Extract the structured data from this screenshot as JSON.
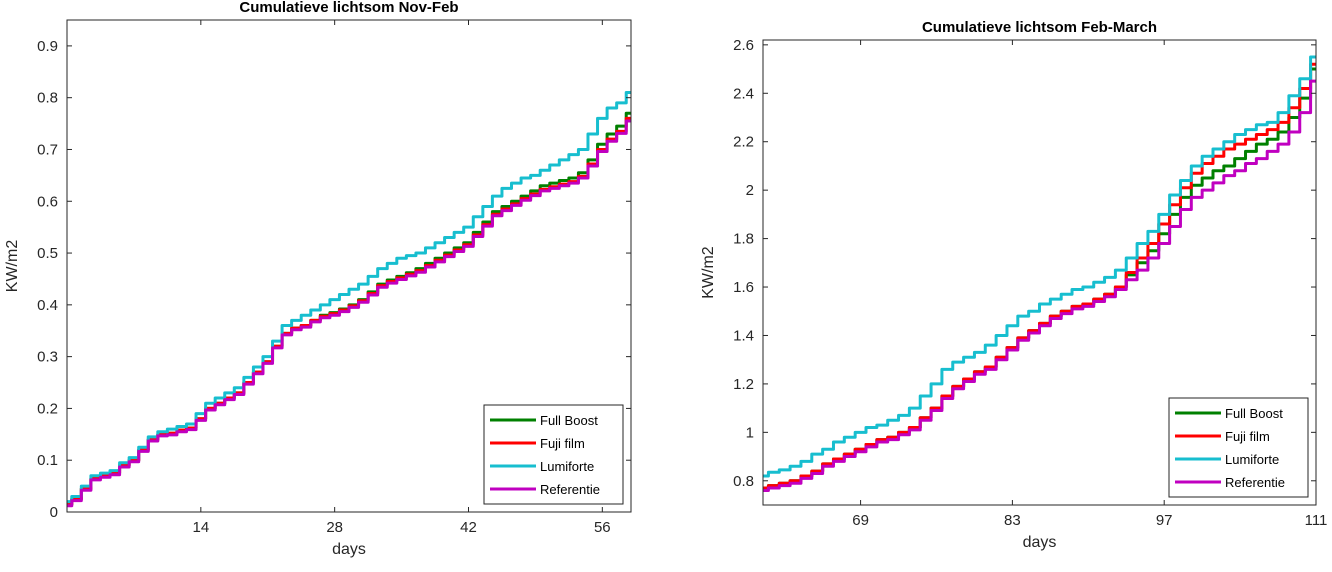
{
  "chart_data": [
    {
      "type": "line",
      "title": "Cumulatieve lichtsom Nov-Feb",
      "xlabel": "days",
      "ylabel": "KW/m2",
      "xlim": [
        0,
        59
      ],
      "ylim": [
        0,
        0.95
      ],
      "xticks": [
        14,
        28,
        42,
        56
      ],
      "yticks": [
        0,
        0.1,
        0.2,
        0.3,
        0.4,
        0.5,
        0.6,
        0.7,
        0.8,
        0.9
      ],
      "grid": false,
      "legend_position": "bottom-right",
      "x": [
        0,
        1,
        2,
        3,
        4,
        5,
        6,
        7,
        8,
        9,
        10,
        11,
        12,
        13,
        14,
        15,
        16,
        17,
        18,
        19,
        20,
        21,
        22,
        23,
        24,
        25,
        26,
        27,
        28,
        29,
        30,
        31,
        32,
        33,
        34,
        35,
        36,
        37,
        38,
        39,
        40,
        41,
        42,
        43,
        44,
        45,
        46,
        47,
        48,
        49,
        50,
        51,
        52,
        53,
        54,
        55,
        56,
        57,
        58,
        59
      ],
      "series": [
        {
          "name": "Full Boost",
          "color": "#008000",
          "values": [
            0.015,
            0.025,
            0.045,
            0.065,
            0.07,
            0.075,
            0.09,
            0.1,
            0.12,
            0.14,
            0.15,
            0.152,
            0.158,
            0.162,
            0.18,
            0.2,
            0.21,
            0.22,
            0.23,
            0.25,
            0.27,
            0.29,
            0.32,
            0.345,
            0.355,
            0.36,
            0.37,
            0.38,
            0.385,
            0.392,
            0.4,
            0.41,
            0.425,
            0.44,
            0.448,
            0.455,
            0.462,
            0.47,
            0.48,
            0.49,
            0.5,
            0.51,
            0.52,
            0.54,
            0.56,
            0.58,
            0.59,
            0.6,
            0.61,
            0.62,
            0.63,
            0.635,
            0.64,
            0.645,
            0.655,
            0.68,
            0.71,
            0.73,
            0.745,
            0.77
          ]
        },
        {
          "name": "Fuji film",
          "color": "#ff0000",
          "values": [
            0.015,
            0.025,
            0.045,
            0.065,
            0.07,
            0.075,
            0.09,
            0.1,
            0.12,
            0.14,
            0.15,
            0.152,
            0.158,
            0.162,
            0.18,
            0.2,
            0.21,
            0.22,
            0.23,
            0.25,
            0.27,
            0.29,
            0.32,
            0.345,
            0.355,
            0.36,
            0.37,
            0.378,
            0.383,
            0.39,
            0.398,
            0.408,
            0.422,
            0.437,
            0.445,
            0.452,
            0.459,
            0.466,
            0.476,
            0.486,
            0.496,
            0.506,
            0.516,
            0.535,
            0.555,
            0.575,
            0.585,
            0.595,
            0.605,
            0.614,
            0.623,
            0.628,
            0.633,
            0.638,
            0.648,
            0.672,
            0.7,
            0.72,
            0.735,
            0.76
          ]
        },
        {
          "name": "Lumiforte",
          "color": "#17becf",
          "values": [
            0.02,
            0.03,
            0.05,
            0.07,
            0.075,
            0.08,
            0.095,
            0.105,
            0.125,
            0.145,
            0.155,
            0.16,
            0.165,
            0.17,
            0.19,
            0.21,
            0.22,
            0.23,
            0.24,
            0.26,
            0.28,
            0.3,
            0.33,
            0.36,
            0.37,
            0.38,
            0.39,
            0.4,
            0.41,
            0.42,
            0.43,
            0.44,
            0.455,
            0.47,
            0.48,
            0.49,
            0.495,
            0.5,
            0.51,
            0.52,
            0.53,
            0.54,
            0.55,
            0.57,
            0.59,
            0.61,
            0.625,
            0.635,
            0.645,
            0.65,
            0.66,
            0.67,
            0.68,
            0.69,
            0.7,
            0.73,
            0.76,
            0.78,
            0.79,
            0.81
          ]
        },
        {
          "name": "Referentie",
          "color": "#c000c0",
          "values": [
            0.012,
            0.022,
            0.042,
            0.062,
            0.067,
            0.072,
            0.087,
            0.097,
            0.117,
            0.137,
            0.147,
            0.149,
            0.155,
            0.159,
            0.177,
            0.197,
            0.207,
            0.217,
            0.227,
            0.247,
            0.267,
            0.287,
            0.317,
            0.342,
            0.352,
            0.357,
            0.367,
            0.375,
            0.38,
            0.387,
            0.395,
            0.405,
            0.419,
            0.434,
            0.442,
            0.449,
            0.456,
            0.463,
            0.473,
            0.483,
            0.493,
            0.503,
            0.513,
            0.532,
            0.552,
            0.572,
            0.582,
            0.592,
            0.602,
            0.611,
            0.62,
            0.625,
            0.63,
            0.635,
            0.645,
            0.668,
            0.696,
            0.716,
            0.731,
            0.755
          ]
        }
      ]
    },
    {
      "type": "line",
      "title": "Cumulatieve lichtsom Feb-March",
      "xlabel": "days",
      "ylabel": "KW/m2",
      "xlim": [
        60,
        111
      ],
      "ylim": [
        0.7,
        2.62
      ],
      "xticks": [
        69,
        83,
        97,
        111
      ],
      "yticks": [
        0.8,
        1,
        1.2,
        1.4,
        1.6,
        1.8,
        2,
        2.2,
        2.4,
        2.6
      ],
      "grid": false,
      "legend_position": "bottom-right",
      "x": [
        60,
        61,
        62,
        63,
        64,
        65,
        66,
        67,
        68,
        69,
        70,
        71,
        72,
        73,
        74,
        75,
        76,
        77,
        78,
        79,
        80,
        81,
        82,
        83,
        84,
        85,
        86,
        87,
        88,
        89,
        90,
        91,
        92,
        93,
        94,
        95,
        96,
        97,
        98,
        99,
        100,
        101,
        102,
        103,
        104,
        105,
        106,
        107,
        108,
        109,
        110,
        111
      ],
      "series": [
        {
          "name": "Full Boost",
          "color": "#008000",
          "values": [
            0.77,
            0.78,
            0.79,
            0.8,
            0.82,
            0.84,
            0.87,
            0.89,
            0.91,
            0.93,
            0.95,
            0.97,
            0.98,
            1.0,
            1.02,
            1.06,
            1.1,
            1.15,
            1.19,
            1.22,
            1.25,
            1.27,
            1.31,
            1.35,
            1.39,
            1.42,
            1.45,
            1.48,
            1.5,
            1.52,
            1.53,
            1.55,
            1.57,
            1.6,
            1.65,
            1.7,
            1.75,
            1.82,
            1.9,
            1.97,
            2.02,
            2.05,
            2.08,
            2.1,
            2.13,
            2.16,
            2.19,
            2.21,
            2.24,
            2.3,
            2.38,
            2.5
          ]
        },
        {
          "name": "Fuji film",
          "color": "#ff0000",
          "values": [
            0.77,
            0.78,
            0.79,
            0.8,
            0.82,
            0.84,
            0.87,
            0.89,
            0.91,
            0.93,
            0.95,
            0.97,
            0.98,
            1.0,
            1.02,
            1.06,
            1.1,
            1.15,
            1.19,
            1.22,
            1.25,
            1.27,
            1.31,
            1.35,
            1.39,
            1.42,
            1.45,
            1.48,
            1.5,
            1.52,
            1.53,
            1.55,
            1.57,
            1.6,
            1.66,
            1.72,
            1.78,
            1.86,
            1.94,
            2.01,
            2.07,
            2.11,
            2.14,
            2.17,
            2.19,
            2.21,
            2.23,
            2.25,
            2.28,
            2.34,
            2.42,
            2.52
          ]
        },
        {
          "name": "Lumiforte",
          "color": "#17becf",
          "values": [
            0.82,
            0.835,
            0.845,
            0.86,
            0.88,
            0.91,
            0.93,
            0.96,
            0.98,
            1.0,
            1.02,
            1.03,
            1.05,
            1.07,
            1.1,
            1.15,
            1.2,
            1.26,
            1.29,
            1.31,
            1.33,
            1.36,
            1.4,
            1.44,
            1.48,
            1.5,
            1.53,
            1.55,
            1.57,
            1.59,
            1.6,
            1.62,
            1.64,
            1.67,
            1.72,
            1.78,
            1.83,
            1.9,
            1.98,
            2.04,
            2.1,
            2.14,
            2.17,
            2.2,
            2.23,
            2.25,
            2.27,
            2.28,
            2.32,
            2.39,
            2.46,
            2.55
          ]
        },
        {
          "name": "Referentie",
          "color": "#c000c0",
          "values": [
            0.76,
            0.77,
            0.78,
            0.79,
            0.81,
            0.83,
            0.86,
            0.88,
            0.9,
            0.92,
            0.94,
            0.96,
            0.97,
            0.99,
            1.01,
            1.05,
            1.09,
            1.14,
            1.18,
            1.21,
            1.24,
            1.26,
            1.3,
            1.34,
            1.38,
            1.41,
            1.44,
            1.47,
            1.49,
            1.51,
            1.52,
            1.54,
            1.56,
            1.59,
            1.63,
            1.67,
            1.72,
            1.78,
            1.85,
            1.92,
            1.97,
            2.0,
            2.03,
            2.06,
            2.08,
            2.11,
            2.13,
            2.16,
            2.19,
            2.24,
            2.32,
            2.45
          ]
        }
      ]
    }
  ]
}
